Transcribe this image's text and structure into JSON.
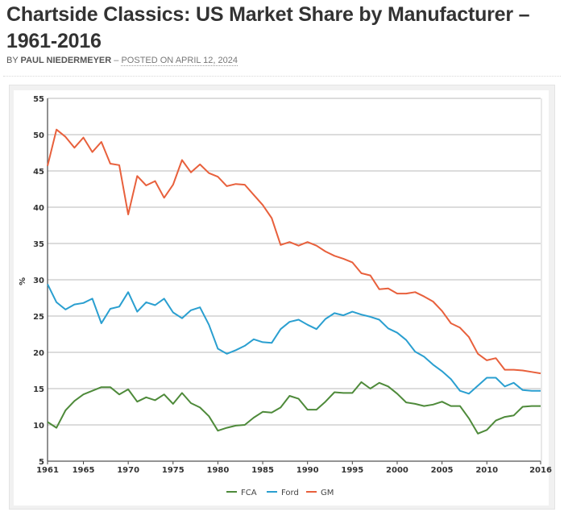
{
  "article": {
    "title": "Chartside Classics: US Market Share by Manufacturer – 1961-2016",
    "byline_prefix": "BY",
    "author": "PAUL NIEDERMEYER",
    "separator": "–",
    "posted_label": "POSTED ON",
    "date": "APRIL 12, 2024"
  },
  "chart_data": {
    "type": "line",
    "title": "",
    "xlabel": "",
    "ylabel": "%",
    "ylim": [
      5,
      55
    ],
    "yticks": [
      5,
      10,
      15,
      20,
      25,
      30,
      35,
      40,
      45,
      50,
      55
    ],
    "xlim": [
      1961,
      2016
    ],
    "xticks": [
      1961,
      1965,
      1970,
      1975,
      1980,
      1985,
      1990,
      1995,
      2000,
      2005,
      2010,
      2016
    ],
    "grid": true,
    "legend_position": "bottom-center",
    "x": [
      1961,
      1962,
      1963,
      1964,
      1965,
      1966,
      1967,
      1968,
      1969,
      1970,
      1971,
      1972,
      1973,
      1974,
      1975,
      1976,
      1977,
      1978,
      1979,
      1980,
      1981,
      1982,
      1983,
      1984,
      1985,
      1986,
      1987,
      1988,
      1989,
      1990,
      1991,
      1992,
      1993,
      1994,
      1995,
      1996,
      1997,
      1998,
      1999,
      2000,
      2001,
      2002,
      2003,
      2004,
      2005,
      2006,
      2007,
      2008,
      2009,
      2010,
      2011,
      2012,
      2013,
      2014,
      2015,
      2016
    ],
    "series": [
      {
        "name": "FCA",
        "color": "#4e8a3a",
        "values": [
          10.4,
          9.6,
          12.0,
          13.3,
          14.2,
          14.7,
          15.2,
          15.2,
          14.2,
          14.9,
          13.2,
          13.8,
          13.4,
          14.2,
          12.9,
          14.4,
          13.0,
          12.4,
          11.2,
          9.2,
          9.6,
          9.9,
          10.0,
          11.0,
          11.8,
          11.7,
          12.4,
          14.0,
          13.6,
          12.1,
          12.1,
          13.2,
          14.5,
          14.4,
          14.4,
          15.9,
          15.0,
          15.8,
          15.3,
          14.3,
          13.1,
          12.9,
          12.6,
          12.8,
          13.2,
          12.6,
          12.6,
          10.9,
          8.8,
          9.3,
          10.6,
          11.1,
          11.3,
          12.5,
          12.6,
          12.6
        ]
      },
      {
        "name": "Ford",
        "color": "#2a9fd0",
        "values": [
          29.4,
          26.9,
          25.9,
          26.6,
          26.8,
          27.4,
          24.0,
          26.0,
          26.3,
          28.3,
          25.6,
          26.9,
          26.5,
          27.4,
          25.5,
          24.7,
          25.8,
          26.2,
          23.8,
          20.5,
          19.8,
          20.3,
          20.9,
          21.8,
          21.4,
          21.3,
          23.2,
          24.2,
          24.5,
          23.8,
          23.2,
          24.6,
          25.4,
          25.1,
          25.6,
          25.2,
          24.9,
          24.5,
          23.3,
          22.7,
          21.7,
          20.1,
          19.4,
          18.3,
          17.4,
          16.3,
          14.7,
          14.3,
          15.4,
          16.5,
          16.5,
          15.3,
          15.8,
          14.8,
          14.7,
          14.7
        ]
      },
      {
        "name": "GM",
        "color": "#e8603c",
        "values": [
          45.7,
          50.7,
          49.7,
          48.2,
          49.6,
          47.6,
          49.0,
          46.0,
          45.8,
          39.0,
          44.3,
          43.0,
          43.6,
          41.3,
          43.1,
          46.5,
          44.8,
          45.9,
          44.7,
          44.2,
          42.9,
          43.2,
          43.1,
          41.7,
          40.3,
          38.5,
          34.8,
          35.2,
          34.7,
          35.2,
          34.7,
          33.9,
          33.3,
          32.9,
          32.4,
          30.9,
          30.6,
          28.7,
          28.8,
          28.1,
          28.1,
          28.3,
          27.7,
          27.0,
          25.7,
          24.0,
          23.4,
          22.1,
          19.8,
          18.9,
          19.2,
          17.6,
          17.6,
          17.5,
          17.3,
          17.1
        ]
      }
    ]
  }
}
